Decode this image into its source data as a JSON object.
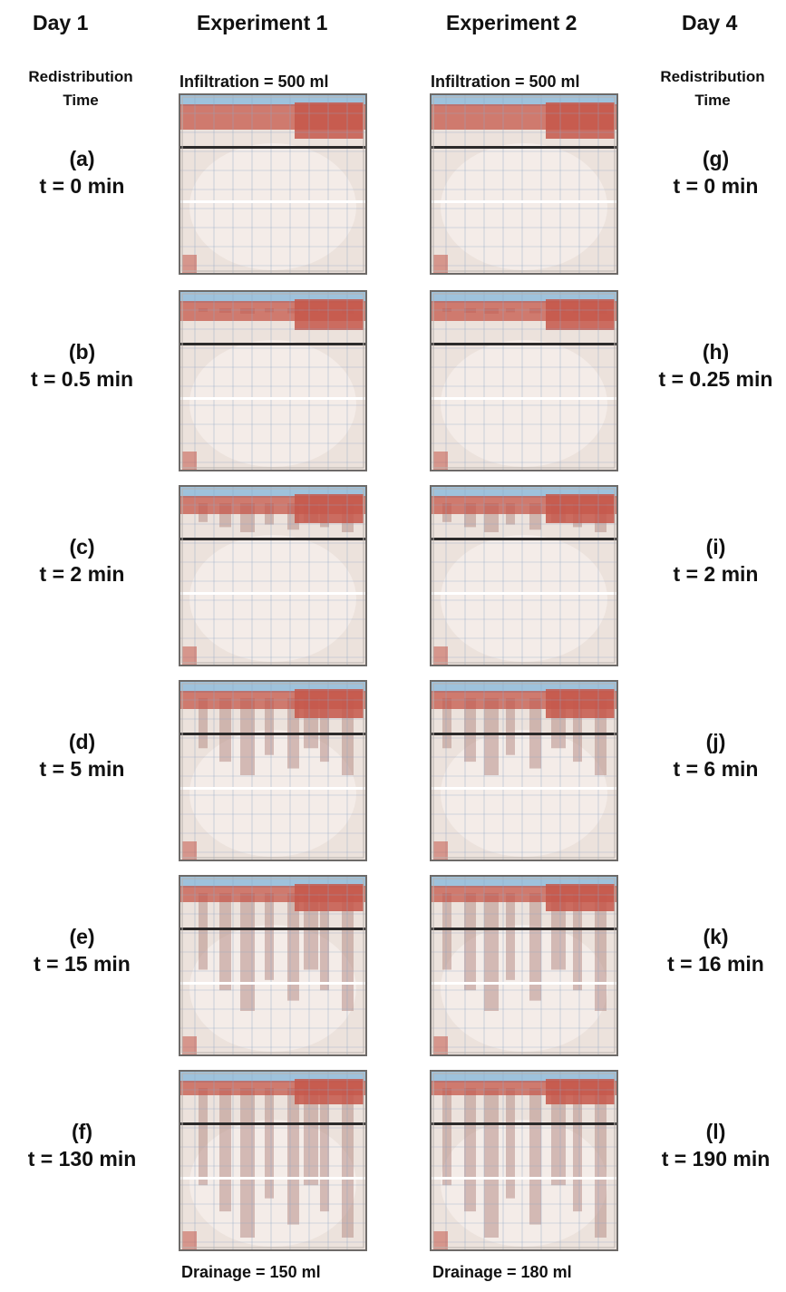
{
  "headers": {
    "day1": "Day 1",
    "exp1": "Experiment 1",
    "exp2": "Experiment 2",
    "day4": "Day 4"
  },
  "side_label": {
    "left": "Redistribution\nTime",
    "right": "Redistribution\nTime"
  },
  "infiltration": {
    "exp1": "Infiltration = 500 ml",
    "exp2": "Infiltration = 500 ml"
  },
  "drainage": {
    "exp1": "Drainage = 150 ml",
    "exp2": "Drainage = 180 ml"
  },
  "rows": [
    {
      "left_letter": "(a)",
      "left_time": "t = 0 min",
      "right_letter": "(g)",
      "right_time": "t = 0 min"
    },
    {
      "left_letter": "(b)",
      "left_time": "t = 0.5 min",
      "right_letter": "(h)",
      "right_time": "t = 0.25 min"
    },
    {
      "left_letter": "(c)",
      "left_time": "t = 2 min",
      "right_letter": "(i)",
      "right_time": "t = 2 min"
    },
    {
      "left_letter": "(d)",
      "left_time": "t = 5 min",
      "right_letter": "(j)",
      "right_time": "t = 6 min"
    },
    {
      "left_letter": "(e)",
      "left_time": "t = 15 min",
      "right_letter": "(k)",
      "right_time": "t = 16 min"
    },
    {
      "left_letter": "(f)",
      "left_time": "t = 130 min",
      "right_letter": "(l)",
      "right_time": "t = 190 min"
    }
  ],
  "colors": {
    "sand": "#ece2dc",
    "dye": "#c5574a",
    "dye_faint": "#b88f88",
    "water": "#9ec2dc",
    "grid": "#8fa6c4",
    "frame": "#6d6a68"
  }
}
